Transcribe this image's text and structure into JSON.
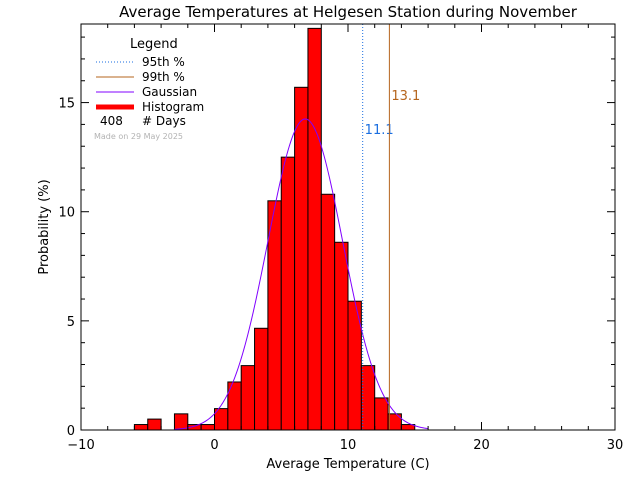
{
  "chart_data": {
    "type": "bar",
    "title": "Average Temperatures at Helgesen Station during November",
    "xlabel": "Average Temperature (C)",
    "ylabel": "Probability (%)",
    "xlim": [
      -10,
      30
    ],
    "ylim": [
      0,
      18.6
    ],
    "xticks": [
      -10,
      0,
      10,
      20,
      30
    ],
    "yticks": [
      0,
      5,
      10,
      15
    ],
    "bin_width": 1,
    "histogram": {
      "name": "Histogram",
      "bins_start": [
        -6,
        -5,
        -3,
        -2,
        -1,
        0,
        1,
        2,
        3,
        4,
        5,
        6,
        7,
        8,
        9,
        10,
        11,
        12,
        13,
        14
      ],
      "values": [
        0.25,
        0.5,
        0.74,
        0.25,
        0.25,
        0.98,
        2.2,
        2.95,
        4.66,
        10.5,
        12.5,
        15.7,
        18.4,
        10.8,
        8.6,
        5.9,
        2.95,
        1.47,
        0.74,
        0.25
      ]
    },
    "gaussian": {
      "name": "Gaussian",
      "mean": 6.8,
      "sigma": 2.8,
      "peak": 14.25
    },
    "percentiles": [
      {
        "name": "95th %",
        "value": 11.1,
        "label": "11.1",
        "color": "#1a6ee0"
      },
      {
        "name": "99th %",
        "value": 13.1,
        "label": "13.1",
        "color": "#b5651d"
      }
    ],
    "legend": {
      "title": "Legend",
      "placement": "top-left",
      "entries": [
        "95th %",
        "99th %",
        "Gaussian",
        "Histogram"
      ],
      "days_count": "408",
      "days_label": "# Days"
    },
    "watermark": "Made on 29 May 2025",
    "colors": {
      "histogram": "#ff0000",
      "gaussian": "#8000ff",
      "axes": "#000000"
    }
  }
}
